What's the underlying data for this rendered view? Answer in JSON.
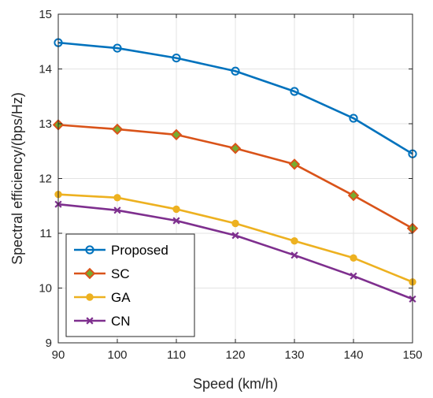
{
  "chart_data": {
    "type": "line",
    "xlabel": "Speed (km/h)",
    "ylabel": "Spectral efficiency/(bps/Hz)",
    "x": [
      90,
      100,
      110,
      120,
      130,
      140,
      150
    ],
    "xlim": [
      90,
      150
    ],
    "ylim": [
      9,
      15
    ],
    "xticks": [
      90,
      100,
      110,
      120,
      130,
      140,
      150
    ],
    "yticks": [
      9,
      10,
      11,
      12,
      13,
      14,
      15
    ],
    "grid": true,
    "legend_position": "bottom-left",
    "series": [
      {
        "name": "Proposed",
        "color": "#0072BD",
        "marker": "circle",
        "values": [
          14.48,
          14.38,
          14.2,
          13.96,
          13.59,
          13.1,
          12.45
        ]
      },
      {
        "name": "SC",
        "color": "#D95319",
        "marker": "diamond",
        "values": [
          12.98,
          12.9,
          12.8,
          12.55,
          12.26,
          11.69,
          11.09
        ]
      },
      {
        "name": "GA",
        "color": "#EDB120",
        "marker": "dot",
        "values": [
          11.71,
          11.65,
          11.44,
          11.18,
          10.86,
          10.55,
          10.11
        ]
      },
      {
        "name": "CN",
        "color": "#7E2F8E",
        "marker": "x",
        "values": [
          11.53,
          11.42,
          11.23,
          10.96,
          10.6,
          10.22,
          9.8
        ]
      }
    ]
  }
}
